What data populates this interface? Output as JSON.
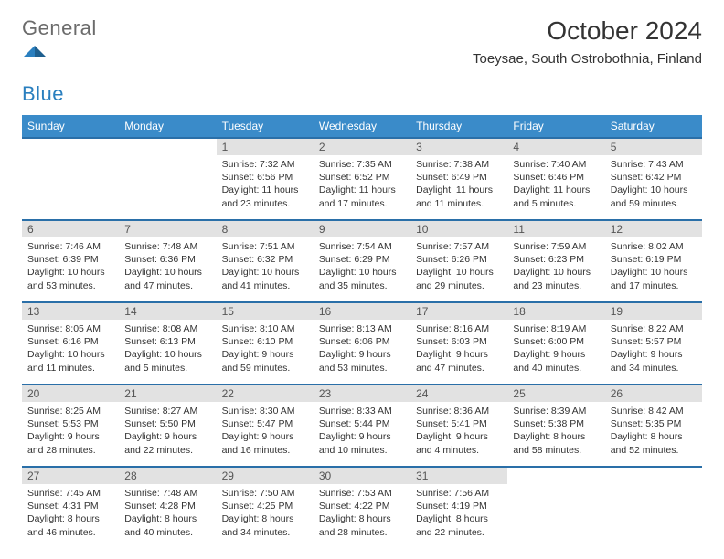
{
  "logo": {
    "general": "General",
    "blue": "Blue"
  },
  "title": "October 2024",
  "location": "Toeysae, South Ostrobothnia, Finland",
  "colors": {
    "header_bg": "#3a8bc9",
    "row_divider": "#2a6fa8",
    "daynum_bg": "#e2e2e2",
    "text": "#333333"
  },
  "weekdays": [
    "Sunday",
    "Monday",
    "Tuesday",
    "Wednesday",
    "Thursday",
    "Friday",
    "Saturday"
  ],
  "weeks": [
    [
      null,
      null,
      {
        "n": "1",
        "sr": "Sunrise: 7:32 AM",
        "ss": "Sunset: 6:56 PM",
        "dl1": "Daylight: 11 hours",
        "dl2": "and 23 minutes."
      },
      {
        "n": "2",
        "sr": "Sunrise: 7:35 AM",
        "ss": "Sunset: 6:52 PM",
        "dl1": "Daylight: 11 hours",
        "dl2": "and 17 minutes."
      },
      {
        "n": "3",
        "sr": "Sunrise: 7:38 AM",
        "ss": "Sunset: 6:49 PM",
        "dl1": "Daylight: 11 hours",
        "dl2": "and 11 minutes."
      },
      {
        "n": "4",
        "sr": "Sunrise: 7:40 AM",
        "ss": "Sunset: 6:46 PM",
        "dl1": "Daylight: 11 hours",
        "dl2": "and 5 minutes."
      },
      {
        "n": "5",
        "sr": "Sunrise: 7:43 AM",
        "ss": "Sunset: 6:42 PM",
        "dl1": "Daylight: 10 hours",
        "dl2": "and 59 minutes."
      }
    ],
    [
      {
        "n": "6",
        "sr": "Sunrise: 7:46 AM",
        "ss": "Sunset: 6:39 PM",
        "dl1": "Daylight: 10 hours",
        "dl2": "and 53 minutes."
      },
      {
        "n": "7",
        "sr": "Sunrise: 7:48 AM",
        "ss": "Sunset: 6:36 PM",
        "dl1": "Daylight: 10 hours",
        "dl2": "and 47 minutes."
      },
      {
        "n": "8",
        "sr": "Sunrise: 7:51 AM",
        "ss": "Sunset: 6:32 PM",
        "dl1": "Daylight: 10 hours",
        "dl2": "and 41 minutes."
      },
      {
        "n": "9",
        "sr": "Sunrise: 7:54 AM",
        "ss": "Sunset: 6:29 PM",
        "dl1": "Daylight: 10 hours",
        "dl2": "and 35 minutes."
      },
      {
        "n": "10",
        "sr": "Sunrise: 7:57 AM",
        "ss": "Sunset: 6:26 PM",
        "dl1": "Daylight: 10 hours",
        "dl2": "and 29 minutes."
      },
      {
        "n": "11",
        "sr": "Sunrise: 7:59 AM",
        "ss": "Sunset: 6:23 PM",
        "dl1": "Daylight: 10 hours",
        "dl2": "and 23 minutes."
      },
      {
        "n": "12",
        "sr": "Sunrise: 8:02 AM",
        "ss": "Sunset: 6:19 PM",
        "dl1": "Daylight: 10 hours",
        "dl2": "and 17 minutes."
      }
    ],
    [
      {
        "n": "13",
        "sr": "Sunrise: 8:05 AM",
        "ss": "Sunset: 6:16 PM",
        "dl1": "Daylight: 10 hours",
        "dl2": "and 11 minutes."
      },
      {
        "n": "14",
        "sr": "Sunrise: 8:08 AM",
        "ss": "Sunset: 6:13 PM",
        "dl1": "Daylight: 10 hours",
        "dl2": "and 5 minutes."
      },
      {
        "n": "15",
        "sr": "Sunrise: 8:10 AM",
        "ss": "Sunset: 6:10 PM",
        "dl1": "Daylight: 9 hours",
        "dl2": "and 59 minutes."
      },
      {
        "n": "16",
        "sr": "Sunrise: 8:13 AM",
        "ss": "Sunset: 6:06 PM",
        "dl1": "Daylight: 9 hours",
        "dl2": "and 53 minutes."
      },
      {
        "n": "17",
        "sr": "Sunrise: 8:16 AM",
        "ss": "Sunset: 6:03 PM",
        "dl1": "Daylight: 9 hours",
        "dl2": "and 47 minutes."
      },
      {
        "n": "18",
        "sr": "Sunrise: 8:19 AM",
        "ss": "Sunset: 6:00 PM",
        "dl1": "Daylight: 9 hours",
        "dl2": "and 40 minutes."
      },
      {
        "n": "19",
        "sr": "Sunrise: 8:22 AM",
        "ss": "Sunset: 5:57 PM",
        "dl1": "Daylight: 9 hours",
        "dl2": "and 34 minutes."
      }
    ],
    [
      {
        "n": "20",
        "sr": "Sunrise: 8:25 AM",
        "ss": "Sunset: 5:53 PM",
        "dl1": "Daylight: 9 hours",
        "dl2": "and 28 minutes."
      },
      {
        "n": "21",
        "sr": "Sunrise: 8:27 AM",
        "ss": "Sunset: 5:50 PM",
        "dl1": "Daylight: 9 hours",
        "dl2": "and 22 minutes."
      },
      {
        "n": "22",
        "sr": "Sunrise: 8:30 AM",
        "ss": "Sunset: 5:47 PM",
        "dl1": "Daylight: 9 hours",
        "dl2": "and 16 minutes."
      },
      {
        "n": "23",
        "sr": "Sunrise: 8:33 AM",
        "ss": "Sunset: 5:44 PM",
        "dl1": "Daylight: 9 hours",
        "dl2": "and 10 minutes."
      },
      {
        "n": "24",
        "sr": "Sunrise: 8:36 AM",
        "ss": "Sunset: 5:41 PM",
        "dl1": "Daylight: 9 hours",
        "dl2": "and 4 minutes."
      },
      {
        "n": "25",
        "sr": "Sunrise: 8:39 AM",
        "ss": "Sunset: 5:38 PM",
        "dl1": "Daylight: 8 hours",
        "dl2": "and 58 minutes."
      },
      {
        "n": "26",
        "sr": "Sunrise: 8:42 AM",
        "ss": "Sunset: 5:35 PM",
        "dl1": "Daylight: 8 hours",
        "dl2": "and 52 minutes."
      }
    ],
    [
      {
        "n": "27",
        "sr": "Sunrise: 7:45 AM",
        "ss": "Sunset: 4:31 PM",
        "dl1": "Daylight: 8 hours",
        "dl2": "and 46 minutes."
      },
      {
        "n": "28",
        "sr": "Sunrise: 7:48 AM",
        "ss": "Sunset: 4:28 PM",
        "dl1": "Daylight: 8 hours",
        "dl2": "and 40 minutes."
      },
      {
        "n": "29",
        "sr": "Sunrise: 7:50 AM",
        "ss": "Sunset: 4:25 PM",
        "dl1": "Daylight: 8 hours",
        "dl2": "and 34 minutes."
      },
      {
        "n": "30",
        "sr": "Sunrise: 7:53 AM",
        "ss": "Sunset: 4:22 PM",
        "dl1": "Daylight: 8 hours",
        "dl2": "and 28 minutes."
      },
      {
        "n": "31",
        "sr": "Sunrise: 7:56 AM",
        "ss": "Sunset: 4:19 PM",
        "dl1": "Daylight: 8 hours",
        "dl2": "and 22 minutes."
      },
      null,
      null
    ]
  ]
}
